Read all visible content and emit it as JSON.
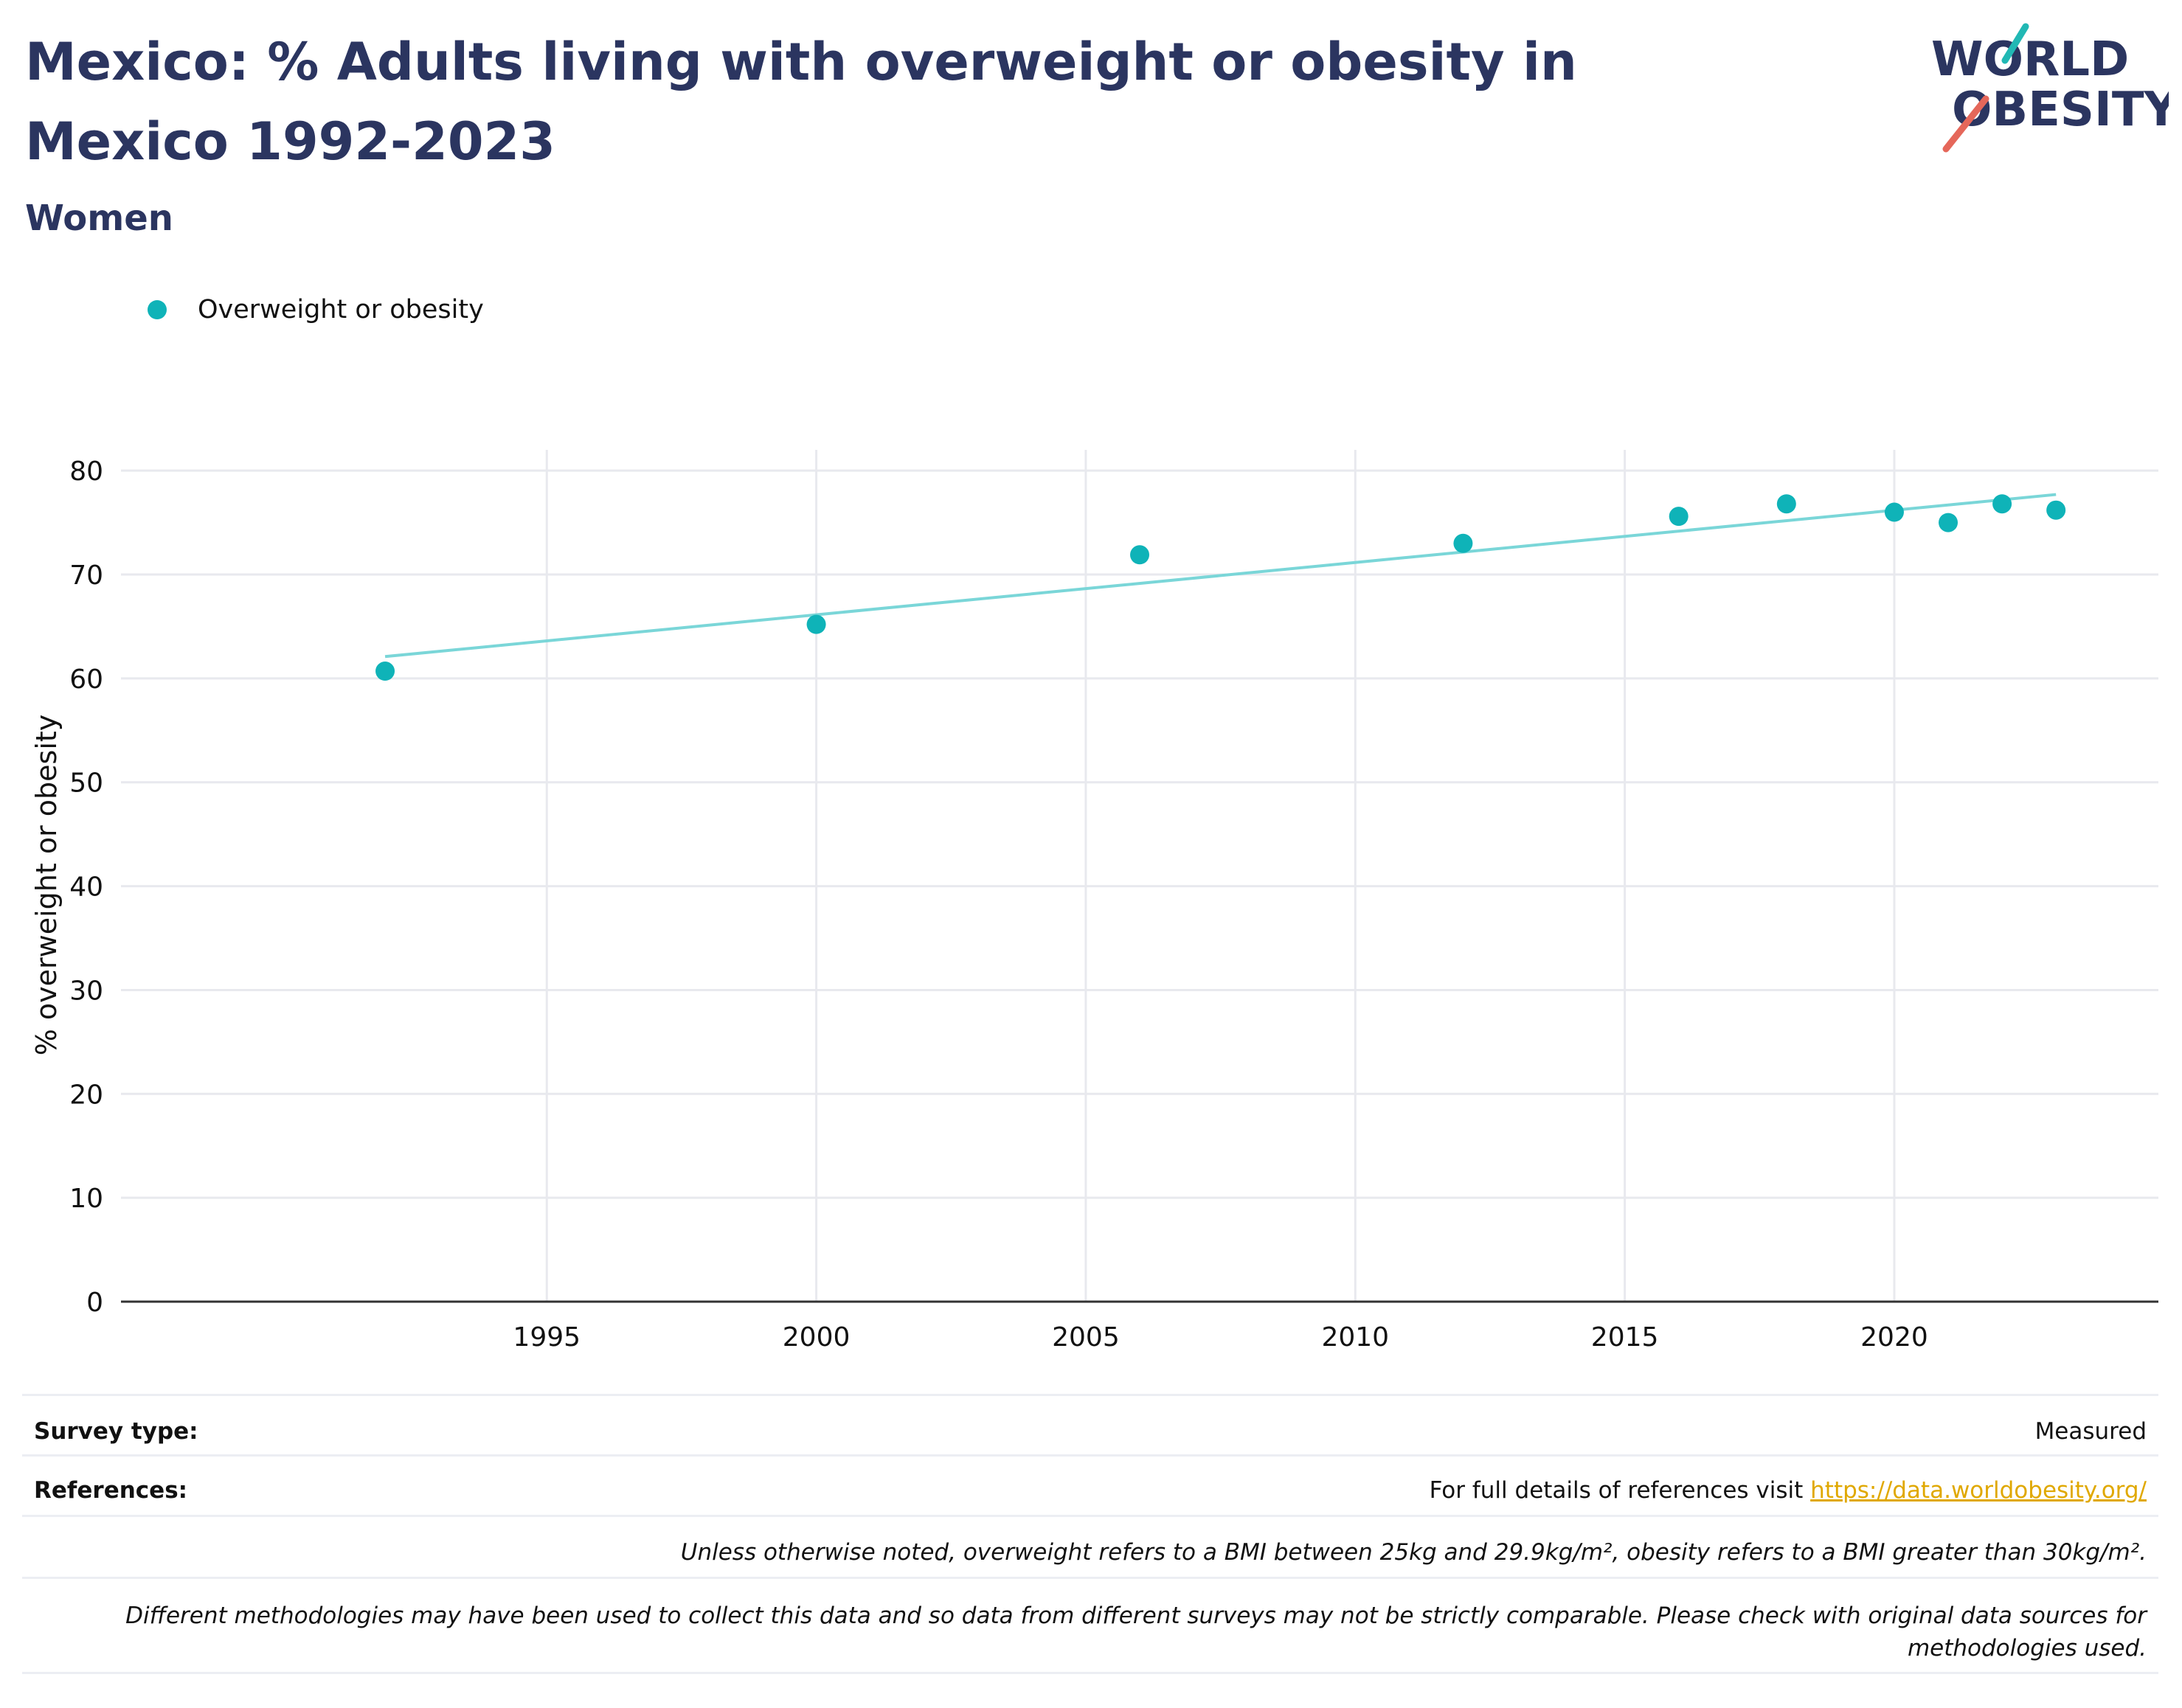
{
  "title": "Mexico: % Adults living with overweight or obesity in Mexico 1992-2023",
  "subtitle": "Women",
  "logo": {
    "line1": "WORLD",
    "line2": "OBESITY"
  },
  "colors": {
    "series": "#0fb3b8",
    "trend": "#7ad6d8",
    "title": "#2b3560",
    "link": "#e0a800"
  },
  "legend": {
    "label": "Overweight or obesity",
    "icon": "circle-marker-icon"
  },
  "chart_data": {
    "type": "scatter",
    "ylabel": "% overweight or obesity",
    "xlabel": "",
    "xlim": [
      1987.1,
      2024.9
    ],
    "ylim": [
      0,
      82
    ],
    "x_ticks": [
      1995,
      2000,
      2005,
      2010,
      2015,
      2020
    ],
    "y_ticks": [
      0,
      10,
      20,
      30,
      40,
      50,
      60,
      70,
      80
    ],
    "grid": true,
    "series": [
      {
        "name": "Overweight or obesity",
        "x": [
          1992,
          2000,
          2006,
          2012,
          2016,
          2018,
          2020,
          2021,
          2022,
          2023
        ],
        "y": [
          60.7,
          65.2,
          71.9,
          73.0,
          75.6,
          76.8,
          76.0,
          75.0,
          76.8,
          76.2
        ]
      }
    ],
    "trendline": {
      "x": [
        1992,
        2023
      ],
      "y": [
        62.1,
        77.7
      ]
    }
  },
  "footer": {
    "survey_label": "Survey type:",
    "survey_value": "Measured",
    "references_label": "References:",
    "references_text": "For full details of references visit",
    "references_link": "https://data.worldobesity.org/",
    "note1": "Unless otherwise noted, overweight refers to a BMI between 25kg and 29.9kg/m², obesity refers to a BMI greater than 30kg/m².",
    "note2a": "Different methodologies may have been used to collect this data and so data from different surveys may not be strictly comparable. Please check with original data sources for",
    "note2b": "methodologies used."
  }
}
